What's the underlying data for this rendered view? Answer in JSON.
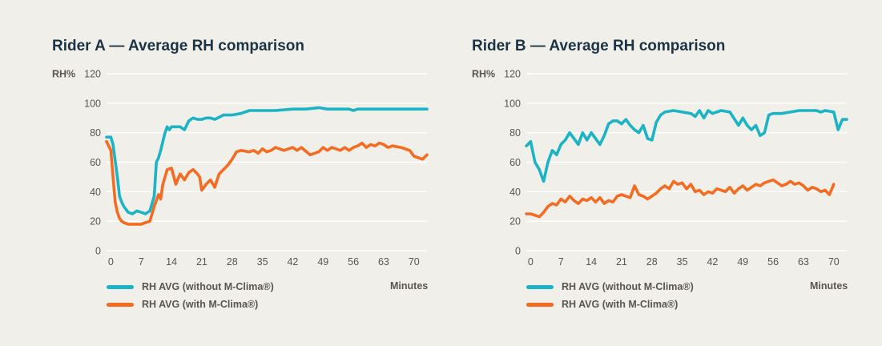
{
  "charts": [
    {
      "title": "Rider A — Average RH comparison",
      "legend": [
        "RH AVG (without M-Clima®)",
        "RH AVG (with M-Clima®)"
      ],
      "x_unit": "Minutes"
    },
    {
      "title": "Rider B — Average RH comparison",
      "legend": [
        "RH AVG (without M-Clima®)",
        "RH AVG (with M-Clima®)"
      ],
      "x_unit": "Minutes"
    }
  ],
  "colors": {
    "without": "#1cb3c4",
    "with": "#f36c21",
    "grid": "#ffffff",
    "background": "#f0efea",
    "title": "#1b3342",
    "text": "#5a5550"
  },
  "chart_data": [
    {
      "type": "line",
      "title": "Rider A — Average RH comparison",
      "ylabel": "RH%",
      "xlabel": "Minutes",
      "ylim": [
        0,
        120
      ],
      "xlim": [
        -1,
        73
      ],
      "yticks": [
        0,
        20,
        40,
        60,
        80,
        100,
        120
      ],
      "xticks": [
        0,
        7,
        14,
        21,
        28,
        35,
        42,
        49,
        56,
        63,
        70
      ],
      "grid": true,
      "legend_position": "bottom-left",
      "series": [
        {
          "name": "RH AVG (without M-Clima®)",
          "color": "#1cb3c4",
          "x": [
            -1,
            0,
            0.5,
            1,
            1.5,
            2,
            2.5,
            3,
            4,
            5,
            6,
            7,
            8,
            9,
            10,
            10.5,
            11,
            11.5,
            12,
            12.5,
            13,
            13.5,
            14,
            15,
            16,
            17,
            18,
            19,
            20,
            21,
            22,
            23,
            24,
            26,
            28,
            30,
            32,
            35,
            38,
            42,
            45,
            48,
            50,
            52,
            55,
            56,
            57,
            60,
            65,
            70,
            73
          ],
          "y": [
            77,
            77,
            72,
            61,
            50,
            37,
            33,
            30,
            26,
            25,
            27,
            26,
            25,
            27,
            37,
            60,
            63,
            68,
            74,
            80,
            84,
            82,
            84,
            84,
            84,
            82,
            88,
            90,
            89,
            89,
            90,
            90,
            89,
            92,
            92,
            93,
            95,
            95,
            95,
            96,
            96,
            97,
            96,
            96,
            96,
            95,
            96,
            96,
            96,
            96,
            96
          ]
        },
        {
          "name": "RH AVG (with M-Clima®)",
          "color": "#f36c21",
          "x": [
            -1,
            0,
            0.5,
            1,
            1.5,
            2,
            2.5,
            3,
            4,
            5,
            6,
            7,
            8,
            9,
            10,
            11,
            11.5,
            12,
            13,
            14,
            15,
            16,
            17,
            18,
            19,
            20,
            20.5,
            21,
            22,
            23,
            24,
            25,
            26,
            27,
            28,
            29,
            30,
            32,
            33,
            34,
            35,
            36,
            37,
            38,
            40,
            42,
            43,
            44,
            46,
            48,
            49,
            50,
            51,
            53,
            54,
            55,
            56,
            57,
            58,
            59,
            60,
            61,
            62,
            63,
            64,
            65,
            67,
            69,
            70,
            71,
            72,
            73
          ],
          "y": [
            74,
            68,
            50,
            33,
            26,
            22,
            20,
            19,
            18,
            18,
            18,
            18,
            19,
            20,
            30,
            38,
            35,
            45,
            55,
            56,
            45,
            52,
            48,
            53,
            55,
            52,
            50,
            41,
            45,
            48,
            43,
            52,
            55,
            58,
            62,
            67,
            68,
            67,
            68,
            66,
            69,
            67,
            68,
            70,
            68,
            70,
            68,
            70,
            65,
            67,
            70,
            68,
            70,
            68,
            70,
            68,
            70,
            71,
            73,
            70,
            72,
            71,
            73,
            72,
            70,
            71,
            70,
            68,
            64,
            63,
            62,
            65
          ]
        }
      ]
    },
    {
      "type": "line",
      "title": "Rider B — Average RH comparison",
      "ylabel": "RH%",
      "xlabel": "Minutes",
      "ylim": [
        0,
        120
      ],
      "xlim": [
        -1,
        73
      ],
      "yticks": [
        0,
        20,
        40,
        60,
        80,
        100,
        120
      ],
      "xticks": [
        0,
        7,
        14,
        21,
        28,
        35,
        42,
        49,
        56,
        63,
        70
      ],
      "grid": true,
      "legend_position": "bottom-left",
      "series": [
        {
          "name": "RH AVG (without M-Clima®)",
          "color": "#1cb3c4",
          "x": [
            -1,
            0,
            1,
            2,
            3,
            4,
            5,
            6,
            7,
            8,
            9,
            10,
            11,
            12,
            13,
            14,
            15,
            16,
            17,
            18,
            19,
            20,
            21,
            22,
            23,
            24,
            25,
            26,
            27,
            28,
            29,
            30,
            31,
            33,
            35,
            37,
            38,
            39,
            40,
            41,
            42,
            44,
            46,
            48,
            49,
            50,
            51,
            52,
            53,
            54,
            55,
            56,
            58,
            60,
            62,
            64,
            66,
            67,
            68,
            70,
            71,
            72,
            73
          ],
          "y": [
            71,
            74,
            60,
            55,
            47,
            60,
            68,
            65,
            72,
            75,
            80,
            76,
            72,
            80,
            75,
            80,
            76,
            72,
            78,
            86,
            88,
            88,
            86,
            89,
            85,
            82,
            80,
            85,
            76,
            75,
            87,
            92,
            94,
            95,
            94,
            93,
            91,
            95,
            90,
            95,
            93,
            95,
            94,
            85,
            90,
            85,
            82,
            85,
            78,
            80,
            92,
            93,
            93,
            94,
            95,
            95,
            95,
            94,
            95,
            94,
            82,
            89,
            89
          ]
        },
        {
          "name": "RH AVG (with M-Clima®)",
          "color": "#f36c21",
          "x": [
            -1,
            0,
            1,
            2,
            3,
            4,
            5,
            6,
            7,
            8,
            9,
            10,
            11,
            12,
            13,
            14,
            15,
            16,
            17,
            18,
            19,
            20,
            21,
            22,
            23,
            24,
            25,
            26,
            27,
            28,
            29,
            30,
            31,
            32,
            33,
            34,
            35,
            36,
            37,
            38,
            39,
            40,
            41,
            42,
            43,
            44,
            45,
            46,
            47,
            48,
            49,
            50,
            51,
            52,
            53,
            54,
            55,
            56,
            57,
            58,
            59,
            60,
            61,
            62,
            63,
            64,
            65,
            66,
            67,
            68,
            69,
            70
          ],
          "y": [
            25,
            25,
            24,
            23,
            26,
            30,
            32,
            31,
            35,
            33,
            37,
            34,
            32,
            35,
            34,
            36,
            33,
            36,
            32,
            34,
            33,
            37,
            38,
            37,
            36,
            44,
            38,
            37,
            35,
            37,
            39,
            42,
            44,
            42,
            47,
            45,
            46,
            42,
            45,
            40,
            41,
            38,
            40,
            39,
            42,
            41,
            40,
            43,
            39,
            42,
            44,
            41,
            43,
            45,
            44,
            46,
            47,
            48,
            46,
            44,
            45,
            47,
            45,
            46,
            44,
            41,
            43,
            42,
            40,
            41,
            38,
            45
          ]
        }
      ]
    }
  ]
}
